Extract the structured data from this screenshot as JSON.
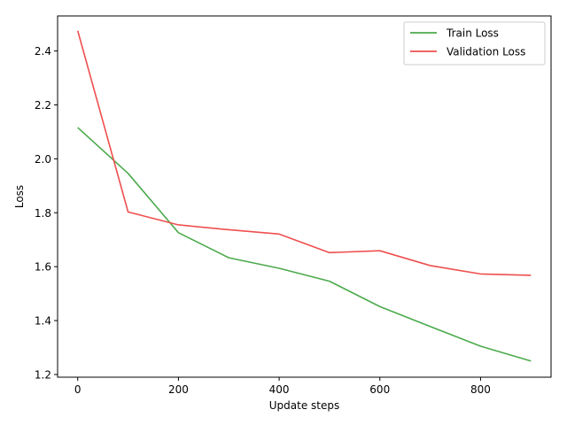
{
  "chart_data": {
    "type": "line",
    "title": "",
    "xlabel": "Update steps",
    "ylabel": "Loss",
    "xlim": [
      -40,
      940
    ],
    "ylim": [
      1.19,
      2.53
    ],
    "xticks": [
      0,
      200,
      400,
      600,
      800
    ],
    "yticks": [
      1.2,
      1.4,
      1.6,
      1.8,
      2.0,
      2.2,
      2.4
    ],
    "xtick_labels": [
      "0",
      "200",
      "400",
      "600",
      "800"
    ],
    "ytick_labels": [
      "1.2",
      "1.4",
      "1.6",
      "1.8",
      "2.0",
      "2.2",
      "2.4"
    ],
    "grid": false,
    "legend_position": "top-right",
    "series": [
      {
        "name": "Train Loss",
        "color": "#4caa4c",
        "x": [
          0,
          100,
          200,
          300,
          400,
          500,
          600,
          700,
          800,
          900
        ],
        "y": [
          2.116,
          1.946,
          1.726,
          1.633,
          1.594,
          1.546,
          1.452,
          1.378,
          1.305,
          1.25
        ]
      },
      {
        "name": "Validation Loss",
        "color": "#ef4f4f",
        "x": [
          0,
          100,
          200,
          300,
          400,
          500,
          600,
          700,
          800,
          900
        ],
        "y": [
          2.475,
          1.803,
          1.755,
          1.737,
          1.721,
          1.652,
          1.659,
          1.604,
          1.573,
          1.568
        ]
      }
    ]
  }
}
